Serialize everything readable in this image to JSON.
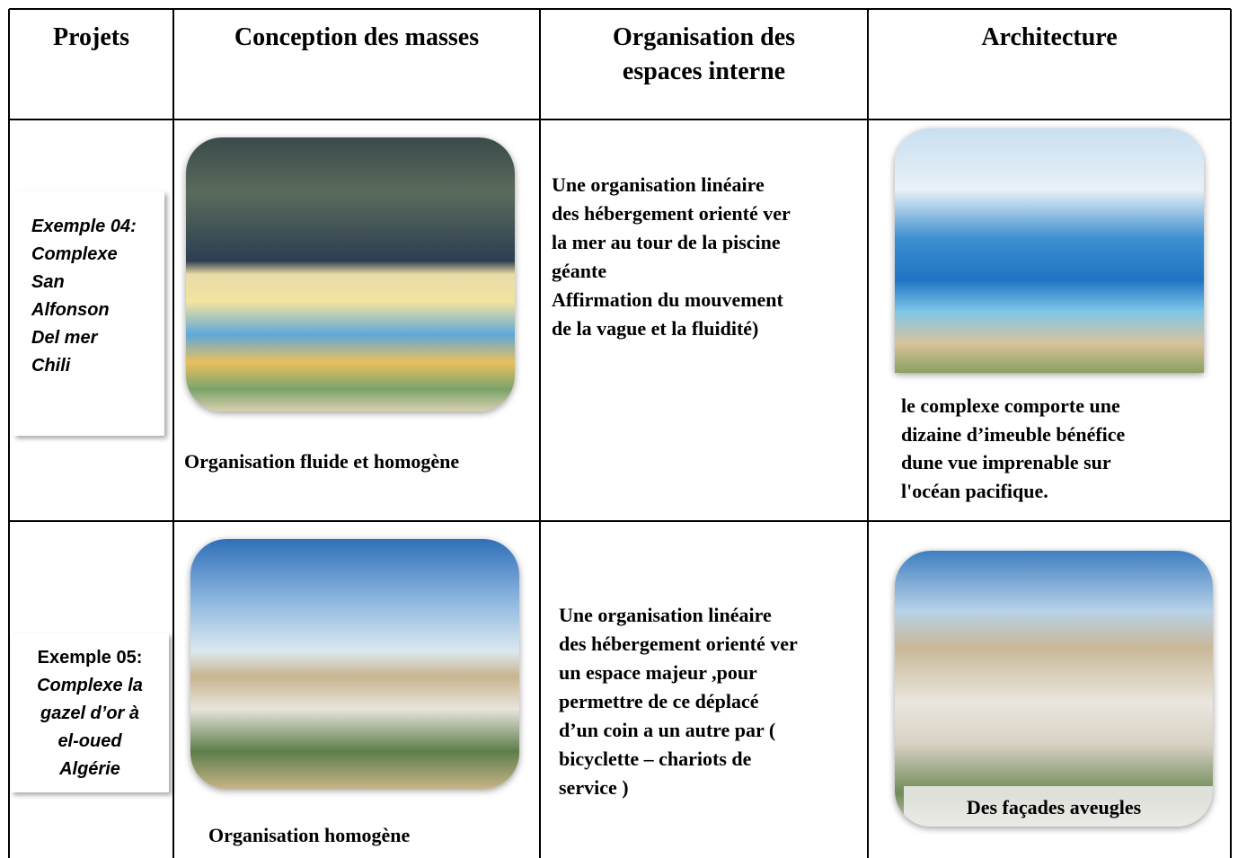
{
  "header": {
    "columns": [
      "Projets",
      "Conception des masses",
      [
        "Organisation des",
        "espaces interne"
      ],
      "Architecture"
    ]
  },
  "rows": [
    {
      "project": [
        "Exemple 04:",
        "Complexe",
        "San",
        "Alfonson",
        "Del mer",
        "Chili"
      ],
      "masses_caption": "Organisation fluide et homogène",
      "organisation": [
        "Une organisation linéaire",
        "des hébergement orienté ver",
        "la mer au tour de la piscine",
        "géante",
        "Affirmation du mouvement",
        "de la vague et la fluidité)"
      ],
      "architecture": [
        "le complexe comporte une",
        "dizaine d’imeuble bénéfice",
        "dune vue imprenable sur",
        "l'océan pacifique."
      ]
    },
    {
      "project": [
        "Exemple 05:",
        "Complexe la",
        "gazel d’or à",
        "el-oued",
        "Algérie"
      ],
      "masses_caption": "Organisation homogène",
      "organisation": [
        "Une organisation linéaire",
        "des hébergement orienté ver",
        "un espace majeur ,pour",
        "permettre de ce déplacé",
        "d’un coin a un autre par  (",
        "bicyclette – chariots de",
        "service )"
      ],
      "architecture_caption": "Des façades aveugles"
    }
  ]
}
